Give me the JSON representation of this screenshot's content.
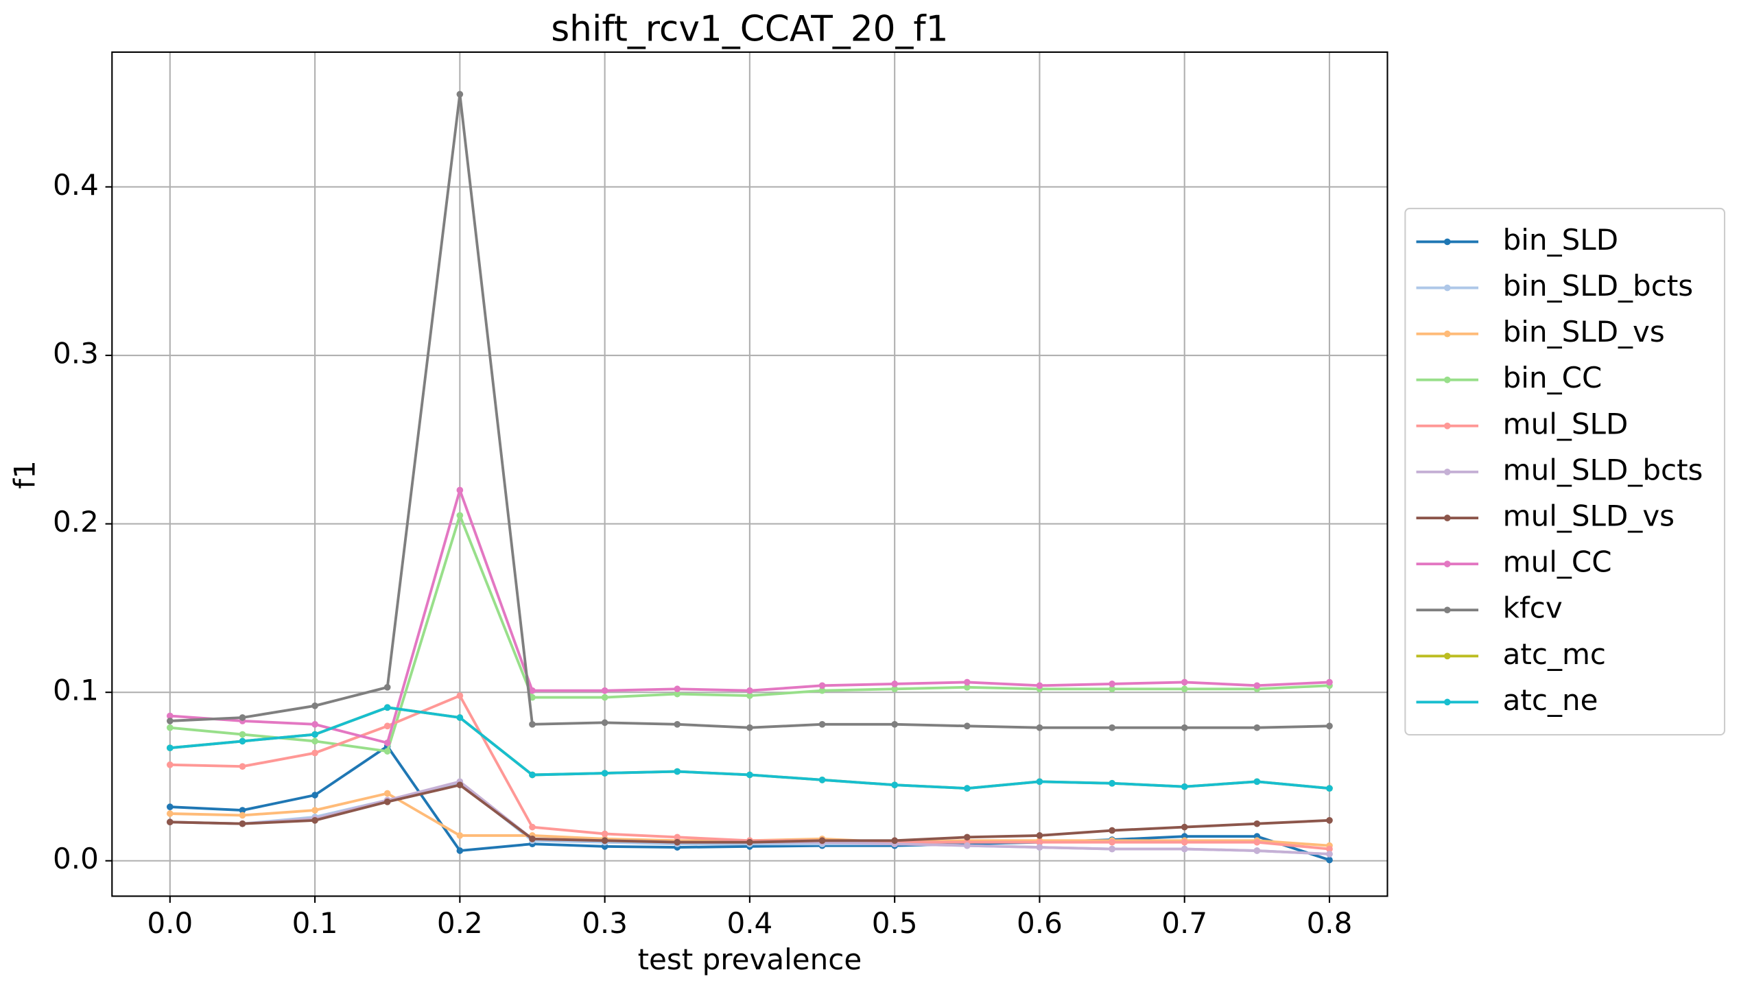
{
  "chart_data": {
    "type": "line",
    "title": "shift_rcv1_CCAT_20_f1",
    "xlabel": "test prevalence",
    "ylabel": "f1",
    "x": [
      0,
      0.05,
      0.1,
      0.15,
      0.2,
      0.25,
      0.3,
      0.35,
      0.4,
      0.45,
      0.5,
      0.55,
      0.6,
      0.65,
      0.7,
      0.75,
      0.8
    ],
    "xlim": [
      -0.04,
      0.84
    ],
    "ylim": [
      -0.021,
      0.48
    ],
    "xticks": [
      {
        "value": 0,
        "label": "0.0"
      },
      0.1,
      0.2,
      0.3,
      0.4,
      0.5,
      0.6,
      0.7,
      0.8
    ],
    "yticks": [
      {
        "value": 0,
        "label": "0.0"
      },
      0.1,
      0.2,
      0.3,
      0.4
    ],
    "grid": true,
    "legend": "right",
    "markers": true,
    "series": [
      {
        "name": "bin_SLD",
        "color": "#1f77b4",
        "values": [
          0.032,
          0.03,
          0.039,
          0.068,
          0.006,
          0.01,
          0.0085,
          0.008,
          0.0085,
          0.009,
          0.009,
          0.01,
          0.011,
          0.0125,
          0.0145,
          0.0145,
          0.0005
        ]
      },
      {
        "name": "bin_SLD_bcts",
        "color": "#aec7e8",
        "values": [
          0.023,
          0.022,
          0.026,
          0.036,
          0.046,
          0.012,
          0.011,
          0.01,
          0.01,
          0.01,
          0.01,
          0.009,
          0.008,
          0.007,
          0.007,
          0.006,
          0.004
        ]
      },
      {
        "name": "bin_SLD_vs",
        "color": "#ffbb78",
        "values": [
          0.028,
          0.027,
          0.03,
          0.04,
          0.015,
          0.015,
          0.013,
          0.012,
          0.012,
          0.013,
          0.011,
          0.012,
          0.012,
          0.012,
          0.012,
          0.012,
          0.009
        ]
      },
      {
        "name": "bin_CC",
        "color": "#98df8a",
        "values": [
          0.079,
          0.075,
          0.071,
          0.065,
          0.205,
          0.097,
          0.097,
          0.099,
          0.098,
          0.101,
          0.102,
          0.103,
          0.102,
          0.102,
          0.102,
          0.102,
          0.104
        ]
      },
      {
        "name": "mul_SLD",
        "color": "#ff9896",
        "values": [
          0.057,
          0.056,
          0.064,
          0.08,
          0.098,
          0.02,
          0.016,
          0.014,
          0.012,
          0.012,
          0.011,
          0.011,
          0.011,
          0.011,
          0.011,
          0.011,
          0.007
        ]
      },
      {
        "name": "mul_SLD_bcts",
        "color": "#c5b0d5",
        "values": [
          0.023,
          0.022,
          0.025,
          0.036,
          0.047,
          0.013,
          0.012,
          0.011,
          0.011,
          0.011,
          0.01,
          0.009,
          0.008,
          0.007,
          0.007,
          0.006,
          0.004
        ]
      },
      {
        "name": "mul_SLD_vs",
        "color": "#8c564b",
        "values": [
          0.023,
          0.022,
          0.024,
          0.035,
          0.045,
          0.013,
          0.012,
          0.011,
          0.011,
          0.012,
          0.012,
          0.014,
          0.015,
          0.018,
          0.02,
          0.022,
          0.024
        ]
      },
      {
        "name": "mul_CC",
        "color": "#e377c2",
        "values": [
          0.086,
          0.083,
          0.081,
          0.07,
          0.22,
          0.101,
          0.101,
          0.102,
          0.101,
          0.104,
          0.105,
          0.106,
          0.104,
          0.105,
          0.106,
          0.104,
          0.106
        ]
      },
      {
        "name": "kfcv",
        "color": "#7f7f7f",
        "values": [
          0.083,
          0.085,
          0.092,
          0.103,
          0.455,
          0.081,
          0.082,
          0.081,
          0.079,
          0.081,
          0.081,
          0.08,
          0.079,
          0.079,
          0.079,
          0.079,
          0.08
        ]
      },
      {
        "name": "atc_mc",
        "color": "#bcbd22",
        "values": [
          0.067,
          0.071,
          0.075,
          0.091,
          0.085,
          0.051,
          0.052,
          0.053,
          0.051,
          0.048,
          0.045,
          0.043,
          0.047,
          0.046,
          0.044,
          0.047,
          0.043
        ]
      },
      {
        "name": "atc_ne",
        "color": "#17becf",
        "values": [
          0.067,
          0.071,
          0.075,
          0.091,
          0.085,
          0.051,
          0.052,
          0.053,
          0.051,
          0.048,
          0.045,
          0.043,
          0.047,
          0.046,
          0.044,
          0.047,
          0.043
        ]
      }
    ]
  }
}
